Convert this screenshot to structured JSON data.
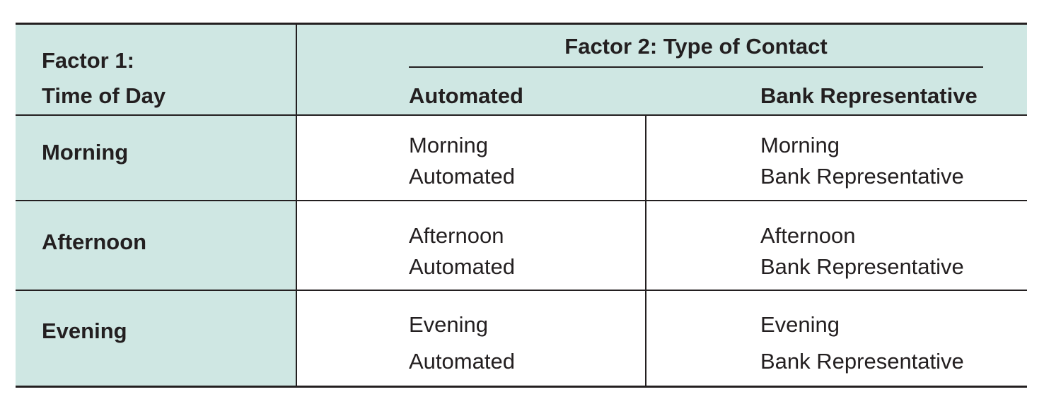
{
  "table": {
    "factor1_header": {
      "line1": "Factor 1:",
      "line2": "Time of Day"
    },
    "factor2_header": "Factor 2: Type of Contact",
    "column_headers": [
      "Automated",
      "Bank Representative"
    ],
    "rows": [
      {
        "label": "Morning",
        "cells": [
          {
            "line1": "Morning",
            "line2": "Automated"
          },
          {
            "line1": "Morning",
            "line2": "Bank Representative"
          }
        ]
      },
      {
        "label": "Afternoon",
        "cells": [
          {
            "line1": "Afternoon",
            "line2": "Automated"
          },
          {
            "line1": "Afternoon",
            "line2": "Bank Representative"
          }
        ]
      },
      {
        "label": "Evening",
        "cells": [
          {
            "line1": "Evening",
            "line2": "Automated"
          },
          {
            "line1": "Evening",
            "line2": "Bank Representative"
          }
        ]
      }
    ],
    "colors": {
      "header_fill": "#cfe7e3",
      "rule": "#231f20",
      "text": "#231f20"
    }
  }
}
